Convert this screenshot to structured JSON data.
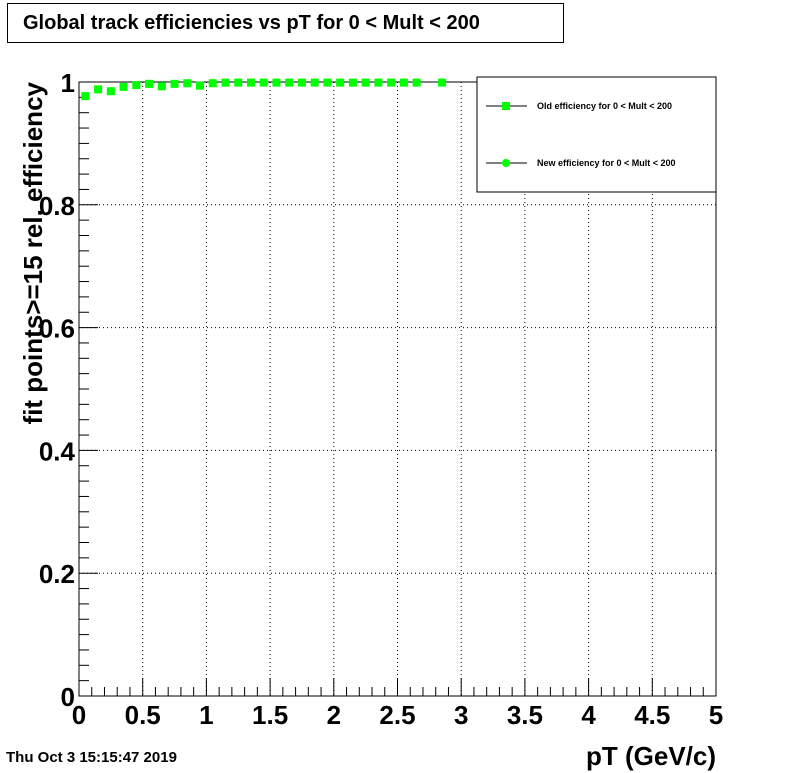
{
  "title": "Global track efficiencies vs pT for 0 < Mult < 200",
  "timestamp": "Thu Oct  3 15:15:47 2019",
  "chart_data": {
    "type": "scatter",
    "xlabel": "pT (GeV/c)",
    "ylabel": "fit points>=15 rel. efficiency",
    "xlim": [
      0,
      5
    ],
    "ylim": [
      0,
      1.0
    ],
    "x_ticks": [
      "0",
      "0.5",
      "1",
      "1.5",
      "2",
      "2.5",
      "3",
      "3.5",
      "4",
      "4.5",
      "5"
    ],
    "y_ticks": [
      "0",
      "0.2",
      "0.4",
      "0.6",
      "0.8",
      "1"
    ],
    "grid": true,
    "legend_position": "top-right",
    "colors": {
      "marker": "#00ff00",
      "legend_line": "#000000"
    },
    "series": [
      {
        "name": "Old efficiency  for 0 < Mult < 200",
        "marker": "square",
        "x": [
          0.05,
          0.15,
          0.25,
          0.35,
          0.45,
          0.55,
          0.65,
          0.75,
          0.85,
          0.95,
          1.05,
          1.15,
          1.25,
          1.35,
          1.45,
          1.55,
          1.65,
          1.75,
          1.85,
          1.95,
          2.05,
          2.15,
          2.25,
          2.35,
          2.45,
          2.55,
          2.65,
          2.85
        ],
        "y": [
          0.977,
          0.988,
          0.985,
          0.992,
          0.995,
          0.997,
          0.993,
          0.997,
          0.998,
          0.994,
          0.998,
          0.999,
          0.999,
          0.999,
          0.999,
          0.999,
          0.999,
          0.999,
          0.999,
          0.999,
          0.999,
          0.999,
          0.999,
          0.999,
          0.999,
          0.999,
          0.999,
          0.999
        ]
      },
      {
        "name": "New efficiency  for 0 < Mult < 200",
        "marker": "circle",
        "x": [
          0.05,
          0.15,
          0.25,
          0.35,
          0.45,
          0.55,
          0.65,
          0.75,
          0.85,
          0.95,
          1.05,
          1.15,
          1.25,
          1.35,
          1.45,
          1.55,
          1.65,
          1.75,
          1.85,
          1.95,
          2.05,
          2.15,
          2.25,
          2.35,
          2.45,
          2.55,
          2.65,
          2.85
        ],
        "y": [
          0.977,
          0.988,
          0.985,
          0.992,
          0.995,
          0.997,
          0.993,
          0.997,
          0.998,
          0.994,
          0.998,
          0.999,
          0.999,
          0.999,
          0.999,
          0.999,
          0.999,
          0.999,
          0.999,
          0.999,
          0.999,
          0.999,
          0.999,
          0.999,
          0.999,
          0.999,
          0.999,
          0.999
        ]
      }
    ]
  }
}
